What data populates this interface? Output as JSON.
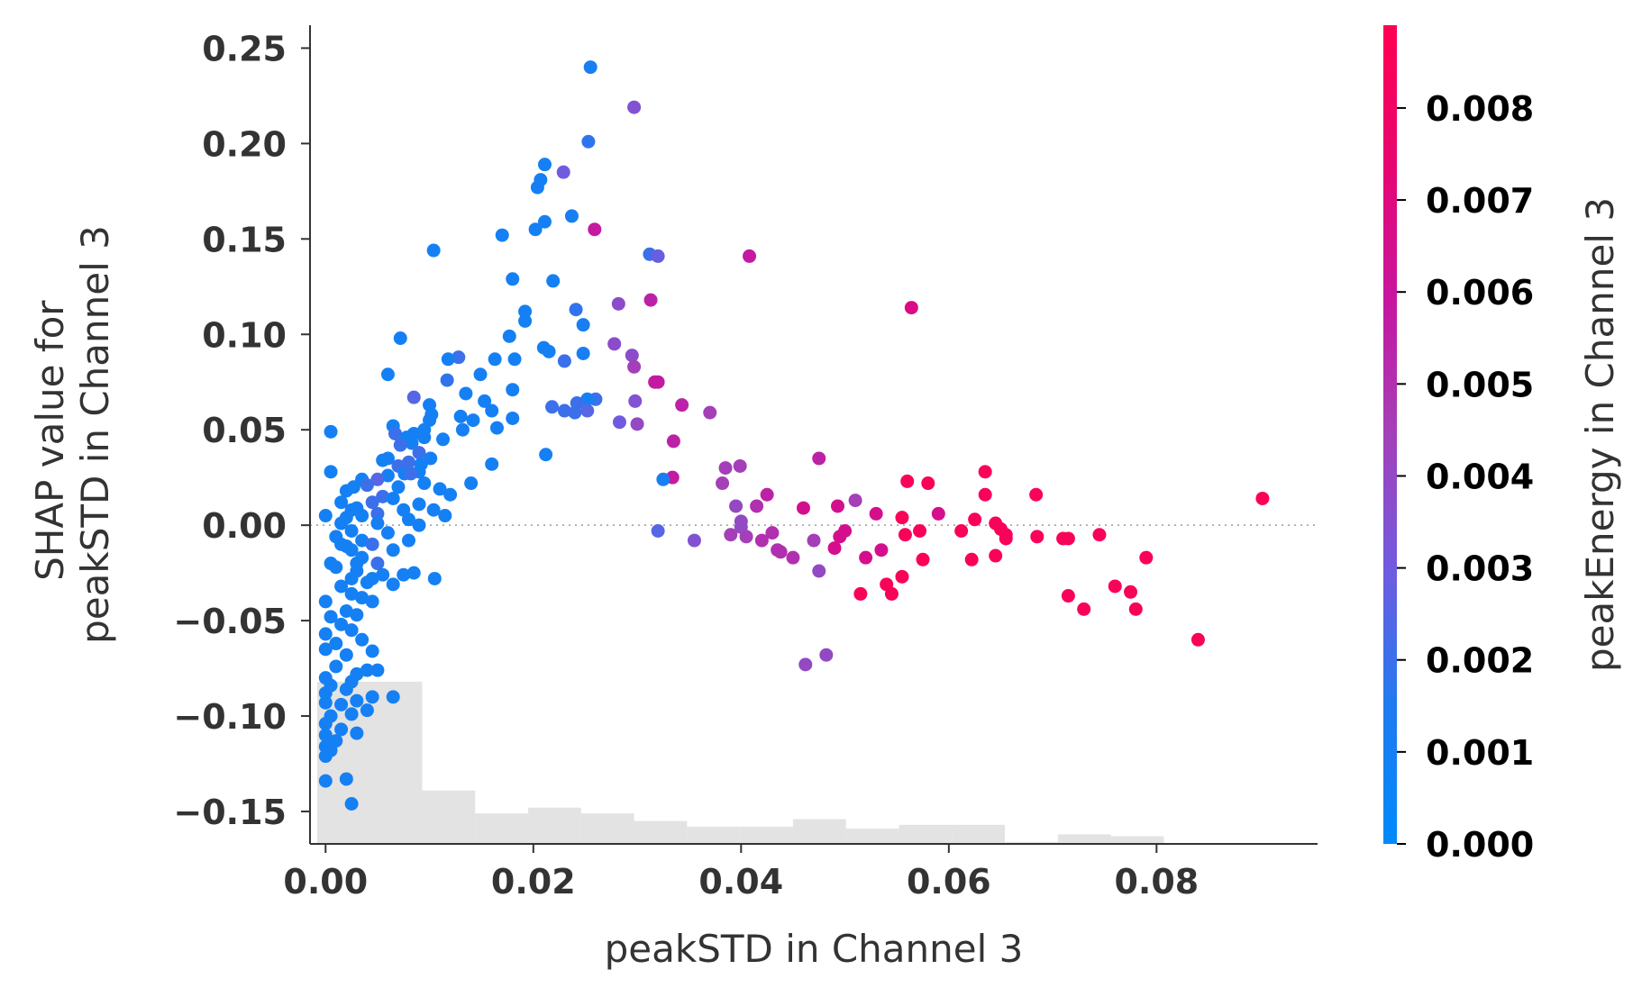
{
  "chart_data": {
    "type": "scatter",
    "xlabel": "peakSTD in Channel 3",
    "ylabel_lines": [
      "SHAP value for",
      "peakSTD in Channel 3"
    ],
    "xlim": [
      -0.0015,
      0.0955
    ],
    "ylim": [
      -0.167,
      0.262
    ],
    "xticks": [
      0.0,
      0.02,
      0.04,
      0.06,
      0.08
    ],
    "xtick_labels": [
      "0.00",
      "0.02",
      "0.04",
      "0.06",
      "0.08"
    ],
    "yticks": [
      -0.15,
      -0.1,
      -0.05,
      0.0,
      0.05,
      0.1,
      0.15,
      0.2,
      0.25
    ],
    "ytick_labels": [
      "−0.15",
      "−0.10",
      "−0.05",
      "0.00",
      "0.05",
      "0.10",
      "0.15",
      "0.20",
      "0.25"
    ],
    "zero_line": true,
    "colorbar": {
      "label": "peakEnergy in Channel 3",
      "range": [
        0.0,
        0.0089
      ],
      "ticks": [
        0.0,
        0.001,
        0.002,
        0.003,
        0.004,
        0.005,
        0.006,
        0.007,
        0.008
      ],
      "tick_labels": [
        "0.000",
        "0.001",
        "0.002",
        "0.003",
        "0.004",
        "0.005",
        "0.006",
        "0.007",
        "0.008"
      ],
      "colormap": [
        "#008afb",
        "#1f7bf0",
        "#6f5ce0",
        "#a340b8",
        "#c7159f",
        "#e8066f",
        "#ff0052"
      ]
    },
    "histogram": {
      "bins": [
        {
          "x0": -0.0008,
          "x1": 0.0093,
          "y": -0.082
        },
        {
          "x0": 0.0093,
          "x1": 0.0144,
          "y": -0.139
        },
        {
          "x0": 0.0144,
          "x1": 0.0195,
          "y": -0.151
        },
        {
          "x0": 0.0195,
          "x1": 0.0246,
          "y": -0.148
        },
        {
          "x0": 0.0246,
          "x1": 0.0297,
          "y": -0.151
        },
        {
          "x0": 0.0297,
          "x1": 0.0348,
          "y": -0.155
        },
        {
          "x0": 0.0348,
          "x1": 0.0399,
          "y": -0.158
        },
        {
          "x0": 0.0399,
          "x1": 0.045,
          "y": -0.158
        },
        {
          "x0": 0.045,
          "x1": 0.0501,
          "y": -0.154
        },
        {
          "x0": 0.0501,
          "x1": 0.0552,
          "y": -0.159
        },
        {
          "x0": 0.0552,
          "x1": 0.0603,
          "y": -0.157
        },
        {
          "x0": 0.0603,
          "x1": 0.0654,
          "y": -0.157
        },
        {
          "x0": 0.0654,
          "x1": 0.0705,
          "y": -0.166
        },
        {
          "x0": 0.0705,
          "x1": 0.0756,
          "y": -0.162
        },
        {
          "x0": 0.0756,
          "x1": 0.0807,
          "y": -0.163
        }
      ]
    },
    "points": [
      [
        0.0255,
        0.24,
        0.0012
      ],
      [
        0.0297,
        0.219,
        0.0035
      ],
      [
        0.0253,
        0.201,
        0.0018
      ],
      [
        0.0211,
        0.189,
        0.001
      ],
      [
        0.0207,
        0.181,
        0.001
      ],
      [
        0.0204,
        0.177,
        0.001
      ],
      [
        0.0229,
        0.185,
        0.003
      ],
      [
        0.0237,
        0.162,
        0.0012
      ],
      [
        0.0211,
        0.159,
        0.001
      ],
      [
        0.0202,
        0.155,
        0.001
      ],
      [
        0.017,
        0.152,
        0.001
      ],
      [
        0.0259,
        0.155,
        0.0058
      ],
      [
        0.0104,
        0.144,
        0.001
      ],
      [
        0.0312,
        0.142,
        0.002
      ],
      [
        0.032,
        0.141,
        0.0028
      ],
      [
        0.0408,
        0.141,
        0.0058
      ],
      [
        0.018,
        0.129,
        0.001
      ],
      [
        0.0219,
        0.128,
        0.001
      ],
      [
        0.0313,
        0.118,
        0.0055
      ],
      [
        0.0282,
        0.116,
        0.0038
      ],
      [
        0.0564,
        0.114,
        0.0068
      ],
      [
        0.0241,
        0.113,
        0.0018
      ],
      [
        0.0192,
        0.112,
        0.001
      ],
      [
        0.0192,
        0.107,
        0.001
      ],
      [
        0.0248,
        0.105,
        0.0012
      ],
      [
        0.0177,
        0.099,
        0.001
      ],
      [
        0.0072,
        0.098,
        0.001
      ],
      [
        0.0278,
        0.095,
        0.0038
      ],
      [
        0.021,
        0.093,
        0.001
      ],
      [
        0.0215,
        0.091,
        0.001
      ],
      [
        0.0248,
        0.09,
        0.0012
      ],
      [
        0.0295,
        0.089,
        0.0038
      ],
      [
        0.0128,
        0.088,
        0.002
      ],
      [
        0.0118,
        0.087,
        0.001
      ],
      [
        0.0163,
        0.087,
        0.001
      ],
      [
        0.0182,
        0.087,
        0.001
      ],
      [
        0.023,
        0.086,
        0.002
      ],
      [
        0.0297,
        0.083,
        0.0045
      ],
      [
        0.006,
        0.079,
        0.001
      ],
      [
        0.0149,
        0.079,
        0.001
      ],
      [
        0.0117,
        0.076,
        0.0018
      ],
      [
        0.0317,
        0.075,
        0.0058
      ],
      [
        0.032,
        0.075,
        0.0058
      ],
      [
        0.026,
        0.066,
        0.002
      ],
      [
        0.0085,
        0.067,
        0.0025
      ],
      [
        0.018,
        0.071,
        0.001
      ],
      [
        0.0135,
        0.069,
        0.001
      ],
      [
        0.0252,
        0.066,
        0.001
      ],
      [
        0.0298,
        0.065,
        0.0035
      ],
      [
        0.0242,
        0.064,
        0.002
      ],
      [
        0.0343,
        0.063,
        0.0055
      ],
      [
        0.01,
        0.063,
        0.001
      ],
      [
        0.0153,
        0.065,
        0.001
      ],
      [
        0.037,
        0.059,
        0.0045
      ],
      [
        0.0218,
        0.062,
        0.002
      ],
      [
        0.024,
        0.059,
        0.002
      ],
      [
        0.0252,
        0.06,
        0.0025
      ],
      [
        0.016,
        0.06,
        0.001
      ],
      [
        0.023,
        0.06,
        0.002
      ],
      [
        0.0102,
        0.058,
        0.001
      ],
      [
        0.013,
        0.057,
        0.001
      ],
      [
        0.018,
        0.056,
        0.001
      ],
      [
        0.0142,
        0.055,
        0.001
      ],
      [
        0.01,
        0.055,
        0.001
      ],
      [
        0.0283,
        0.054,
        0.003
      ],
      [
        0.03,
        0.053,
        0.004
      ],
      [
        0.0065,
        0.052,
        0.001
      ],
      [
        0.0165,
        0.051,
        0.001
      ],
      [
        0.0132,
        0.05,
        0.001
      ],
      [
        0.0095,
        0.05,
        0.001
      ],
      [
        0.0005,
        0.049,
        0.001
      ],
      [
        0.0067,
        0.048,
        0.002
      ],
      [
        0.0085,
        0.048,
        0.001
      ],
      [
        0.0095,
        0.046,
        0.001
      ],
      [
        0.0078,
        0.046,
        0.001
      ],
      [
        0.0113,
        0.045,
        0.001
      ],
      [
        0.0335,
        0.044,
        0.0055
      ],
      [
        0.0083,
        0.043,
        0.001
      ],
      [
        0.0072,
        0.042,
        0.002
      ],
      [
        0.0212,
        0.037,
        0.001
      ],
      [
        0.009,
        0.038,
        0.002
      ],
      [
        0.006,
        0.035,
        0.001
      ],
      [
        0.0101,
        0.035,
        0.001
      ],
      [
        0.0055,
        0.034,
        0.001
      ],
      [
        0.008,
        0.033,
        0.002
      ],
      [
        0.0475,
        0.035,
        0.0055
      ],
      [
        0.016,
        0.032,
        0.001
      ],
      [
        0.0092,
        0.032,
        0.001
      ],
      [
        0.007,
        0.031,
        0.002
      ],
      [
        0.0399,
        0.031,
        0.0045
      ],
      [
        0.0385,
        0.03,
        0.0045
      ],
      [
        0.0005,
        0.028,
        0.001
      ],
      [
        0.009,
        0.028,
        0.001
      ],
      [
        0.0076,
        0.027,
        0.001
      ],
      [
        0.0635,
        0.028,
        0.0085
      ],
      [
        0.0082,
        0.027,
        0.002
      ],
      [
        0.006,
        0.026,
        0.001
      ],
      [
        0.0334,
        0.025,
        0.0058
      ],
      [
        0.0325,
        0.024,
        0.0012
      ],
      [
        0.0035,
        0.024,
        0.001
      ],
      [
        0.005,
        0.024,
        0.0025
      ],
      [
        0.056,
        0.023,
        0.0085
      ],
      [
        0.058,
        0.022,
        0.0085
      ],
      [
        0.014,
        0.022,
        0.001
      ],
      [
        0.0382,
        0.022,
        0.0045
      ],
      [
        0.0095,
        0.022,
        0.001
      ],
      [
        0.0027,
        0.02,
        0.001
      ],
      [
        0.004,
        0.021,
        0.002
      ],
      [
        0.007,
        0.02,
        0.001
      ],
      [
        0.011,
        0.019,
        0.001
      ],
      [
        0.002,
        0.018,
        0.001
      ],
      [
        0.0684,
        0.016,
        0.0085
      ],
      [
        0.0635,
        0.016,
        0.0085
      ],
      [
        0.0425,
        0.016,
        0.0055
      ],
      [
        0.012,
        0.016,
        0.001
      ],
      [
        0.0055,
        0.015,
        0.002
      ],
      [
        0.0902,
        0.014,
        0.0087
      ],
      [
        0.0065,
        0.014,
        0.001
      ],
      [
        0.051,
        0.013,
        0.0045
      ],
      [
        0.0015,
        0.012,
        0.001
      ],
      [
        0.0045,
        0.012,
        0.002
      ],
      [
        0.009,
        0.011,
        0.001
      ],
      [
        0.0395,
        0.01,
        0.004
      ],
      [
        0.0415,
        0.01,
        0.005
      ],
      [
        0.0493,
        0.01,
        0.0065
      ],
      [
        0.046,
        0.009,
        0.0065
      ],
      [
        0.003,
        0.009,
        0.001
      ],
      [
        0.0075,
        0.008,
        0.001
      ],
      [
        0.0025,
        0.008,
        0.001
      ],
      [
        0.0104,
        0.008,
        0.001
      ],
      [
        0.005,
        0.006,
        0.002
      ],
      [
        0.053,
        0.006,
        0.0065
      ],
      [
        0.059,
        0.006,
        0.0065
      ],
      [
        0.0,
        0.005,
        0.001
      ],
      [
        0.0035,
        0.005,
        0.001
      ],
      [
        0.0115,
        0.005,
        0.001
      ],
      [
        0.002,
        0.004,
        0.001
      ],
      [
        0.0555,
        0.004,
        0.0085
      ],
      [
        0.0625,
        0.003,
        0.0085
      ],
      [
        0.008,
        0.003,
        0.001
      ],
      [
        0.04,
        0.002,
        0.004
      ],
      [
        0.005,
        0.001,
        0.001
      ],
      [
        0.0015,
        0.001,
        0.001
      ],
      [
        0.0645,
        0.001,
        0.0085
      ],
      [
        0.009,
        0.0,
        0.001
      ],
      [
        0.04,
        -0.001,
        0.004
      ],
      [
        0.065,
        -0.002,
        0.0085
      ],
      [
        0.032,
        -0.003,
        0.0025
      ],
      [
        0.0572,
        -0.003,
        0.0085
      ],
      [
        0.0612,
        -0.003,
        0.0085
      ],
      [
        0.05,
        -0.003,
        0.0065
      ],
      [
        0.0025,
        -0.003,
        0.001
      ],
      [
        0.043,
        -0.004,
        0.005
      ],
      [
        0.006,
        -0.004,
        0.001
      ],
      [
        0.0558,
        -0.005,
        0.0085
      ],
      [
        0.0655,
        -0.005,
        0.0085
      ],
      [
        0.0745,
        -0.005,
        0.0085
      ],
      [
        0.039,
        -0.005,
        0.0045
      ],
      [
        0.0405,
        -0.006,
        0.0045
      ],
      [
        0.0685,
        -0.006,
        0.0085
      ],
      [
        0.0495,
        -0.006,
        0.0065
      ],
      [
        0.071,
        -0.007,
        0.0085
      ],
      [
        0.0715,
        -0.007,
        0.0085
      ],
      [
        0.001,
        -0.006,
        0.001
      ],
      [
        0.0655,
        -0.007,
        0.0085
      ],
      [
        0.0355,
        -0.008,
        0.0035
      ],
      [
        0.042,
        -0.008,
        0.005
      ],
      [
        0.0035,
        -0.008,
        0.001
      ],
      [
        0.008,
        -0.008,
        0.001
      ],
      [
        0.0045,
        -0.01,
        0.002
      ],
      [
        0.047,
        -0.008,
        0.0045
      ],
      [
        0.0015,
        -0.01,
        0.001
      ],
      [
        0.002,
        -0.011,
        0.001
      ],
      [
        0.049,
        -0.012,
        0.0065
      ],
      [
        0.0435,
        -0.013,
        0.005
      ],
      [
        0.0438,
        -0.014,
        0.005
      ],
      [
        0.0535,
        -0.013,
        0.0065
      ],
      [
        0.0065,
        -0.013,
        0.001
      ],
      [
        0.0025,
        -0.013,
        0.001
      ],
      [
        0.0645,
        -0.016,
        0.0085
      ],
      [
        0.045,
        -0.017,
        0.005
      ],
      [
        0.052,
        -0.017,
        0.0065
      ],
      [
        0.0035,
        -0.017,
        0.001
      ],
      [
        0.0622,
        -0.018,
        0.0085
      ],
      [
        0.0575,
        -0.018,
        0.0085
      ],
      [
        0.079,
        -0.017,
        0.0085
      ],
      [
        0.003,
        -0.02,
        0.001
      ],
      [
        0.0005,
        -0.02,
        0.001
      ],
      [
        0.005,
        -0.02,
        0.002
      ],
      [
        0.001,
        -0.022,
        0.001
      ],
      [
        0.003,
        -0.024,
        0.001
      ],
      [
        0.0475,
        -0.024,
        0.004
      ],
      [
        0.0085,
        -0.025,
        0.001
      ],
      [
        0.0075,
        -0.026,
        0.001
      ],
      [
        0.0055,
        -0.026,
        0.001
      ],
      [
        0.0045,
        -0.028,
        0.001
      ],
      [
        0.0555,
        -0.027,
        0.0085
      ],
      [
        0.0105,
        -0.028,
        0.001
      ],
      [
        0.0025,
        -0.028,
        0.001
      ],
      [
        0.054,
        -0.031,
        0.0085
      ],
      [
        0.004,
        -0.03,
        0.001
      ],
      [
        0.0065,
        -0.031,
        0.001
      ],
      [
        0.0015,
        -0.032,
        0.001
      ],
      [
        0.076,
        -0.032,
        0.0085
      ],
      [
        0.0775,
        -0.035,
        0.0085
      ],
      [
        0.0515,
        -0.036,
        0.0085
      ],
      [
        0.0545,
        -0.036,
        0.0085
      ],
      [
        0.0025,
        -0.036,
        0.001
      ],
      [
        0.0715,
        -0.037,
        0.0085
      ],
      [
        0.0035,
        -0.038,
        0.001
      ],
      [
        0.0045,
        -0.04,
        0.001
      ],
      [
        0.0,
        -0.04,
        0.001
      ],
      [
        0.073,
        -0.044,
        0.0085
      ],
      [
        0.078,
        -0.044,
        0.0085
      ],
      [
        0.002,
        -0.045,
        0.001
      ],
      [
        0.003,
        -0.047,
        0.001
      ],
      [
        0.0005,
        -0.048,
        0.001
      ],
      [
        0.0015,
        -0.052,
        0.001
      ],
      [
        0.0025,
        -0.055,
        0.001
      ],
      [
        0.0,
        -0.057,
        0.001
      ],
      [
        0.084,
        -0.06,
        0.0085
      ],
      [
        0.0035,
        -0.06,
        0.001
      ],
      [
        0.001,
        -0.062,
        0.001
      ],
      [
        0.0,
        -0.065,
        0.001
      ],
      [
        0.0045,
        -0.066,
        0.001
      ],
      [
        0.002,
        -0.068,
        0.001
      ],
      [
        0.0482,
        -0.068,
        0.004
      ],
      [
        0.0462,
        -0.073,
        0.004
      ],
      [
        0.001,
        -0.074,
        0.001
      ],
      [
        0.004,
        -0.076,
        0.001
      ],
      [
        0.003,
        -0.078,
        0.001
      ],
      [
        0.005,
        -0.076,
        0.001
      ],
      [
        0.0,
        -0.08,
        0.001
      ],
      [
        0.0025,
        -0.082,
        0.001
      ],
      [
        0.0005,
        -0.084,
        0.001
      ],
      [
        0.002,
        -0.086,
        0.001
      ],
      [
        0.0,
        -0.088,
        0.001
      ],
      [
        0.0065,
        -0.09,
        0.001
      ],
      [
        0.0045,
        -0.09,
        0.001
      ],
      [
        0.003,
        -0.092,
        0.001
      ],
      [
        0.0,
        -0.093,
        0.001
      ],
      [
        0.0015,
        -0.094,
        0.001
      ],
      [
        0.004,
        -0.097,
        0.001
      ],
      [
        0.0025,
        -0.099,
        0.001
      ],
      [
        0.0005,
        -0.1,
        0.001
      ],
      [
        0.0,
        -0.104,
        0.001
      ],
      [
        0.0015,
        -0.107,
        0.001
      ],
      [
        0.003,
        -0.109,
        0.001
      ],
      [
        0.0,
        -0.11,
        0.001
      ],
      [
        0.001,
        -0.113,
        0.001
      ],
      [
        0.0,
        -0.116,
        0.001
      ],
      [
        0.0005,
        -0.118,
        0.001
      ],
      [
        0.0,
        -0.121,
        0.001
      ],
      [
        0.0,
        -0.134,
        0.001
      ],
      [
        0.002,
        -0.133,
        0.001
      ],
      [
        0.0025,
        -0.146,
        0.001
      ]
    ]
  }
}
